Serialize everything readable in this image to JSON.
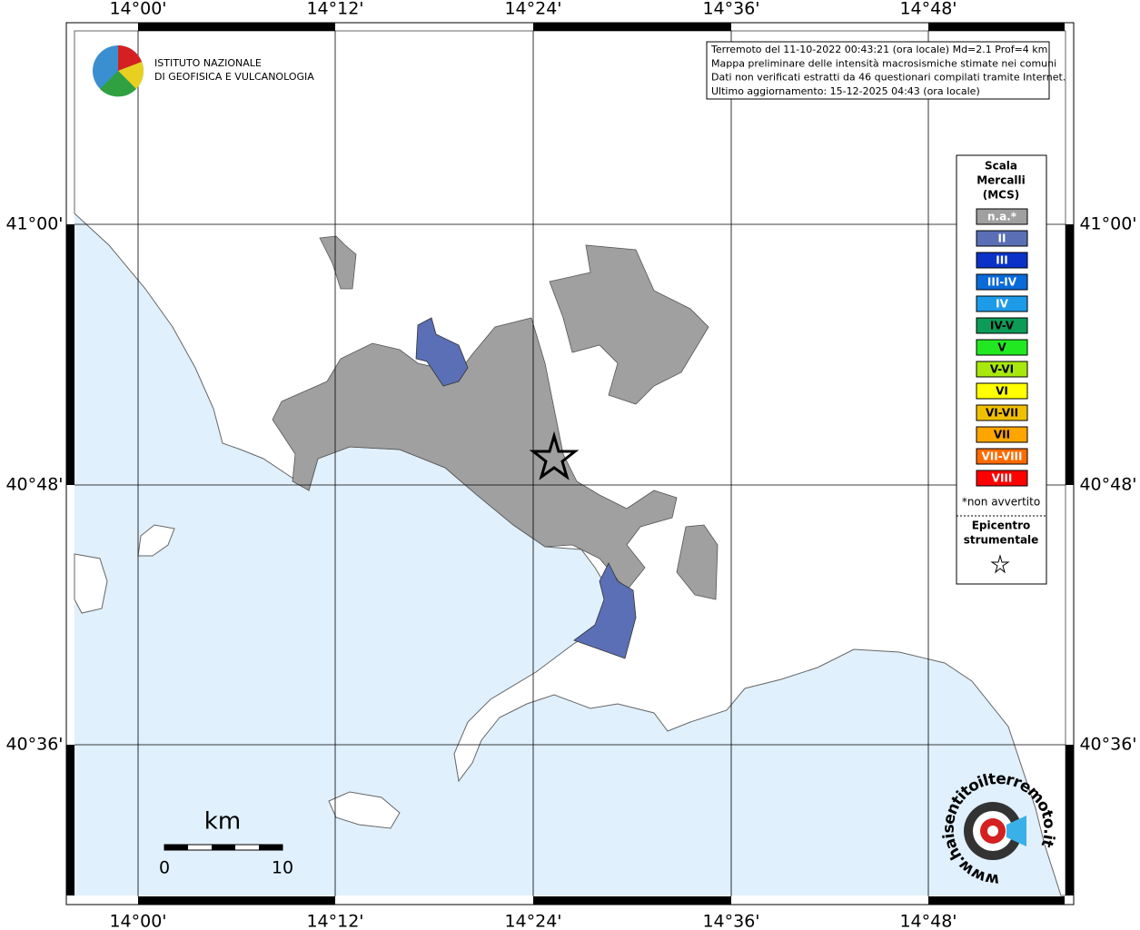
{
  "logo": {
    "line1": "ISTITUTO NAZIONALE",
    "line2": "DI GEOFISICA E VULCANOLOGIA"
  },
  "longitude_labels": [
    "14°00'",
    "14°12'",
    "14°24'",
    "14°36'",
    "14°48'"
  ],
  "latitude_labels": [
    "41°00'",
    "40°48'",
    "40°36'"
  ],
  "info": [
    "Terremoto del 11-10-2022 00:43:21 (ora locale) Md=2.1 Prof=4 km",
    "Mappa preliminare delle intensità macrosismiche stimate nei comuni",
    "Dati non verificati estratti da 46 questionari compilati tramite Internet.",
    "Ultimo aggiornamento: 15-12-2025 04:43 (ora locale)"
  ],
  "legend": {
    "title": [
      "Scala",
      "Mercalli",
      "(MCS)"
    ],
    "items": [
      {
        "label": "n.a.*",
        "color": "#a0a0a0"
      },
      {
        "label": "II",
        "color": "#5a6fb5"
      },
      {
        "label": "III",
        "color": "#0a32c8"
      },
      {
        "label": "III-IV",
        "color": "#0a6ad8"
      },
      {
        "label": "IV",
        "color": "#1e9be8"
      },
      {
        "label": "IV-V",
        "color": "#0c9c58"
      },
      {
        "label": "V",
        "color": "#22e822"
      },
      {
        "label": "V-VI",
        "color": "#a8e80c"
      },
      {
        "label": "VI",
        "color": "#ffff00"
      },
      {
        "label": "VI-VII",
        "color": "#f0c000"
      },
      {
        "label": "VII",
        "color": "#ffa500"
      },
      {
        "label": "VII-VIII",
        "color": "#ff6a00"
      },
      {
        "label": "VIII",
        "color": "#ff0000"
      }
    ],
    "note": "*non avvertito",
    "epicentre": [
      "Epicentro",
      "strumentale"
    ]
  },
  "scale_bar": {
    "unit": "km",
    "start": "0",
    "end": "10"
  },
  "site": "www.haisentitoilterremoto.it"
}
